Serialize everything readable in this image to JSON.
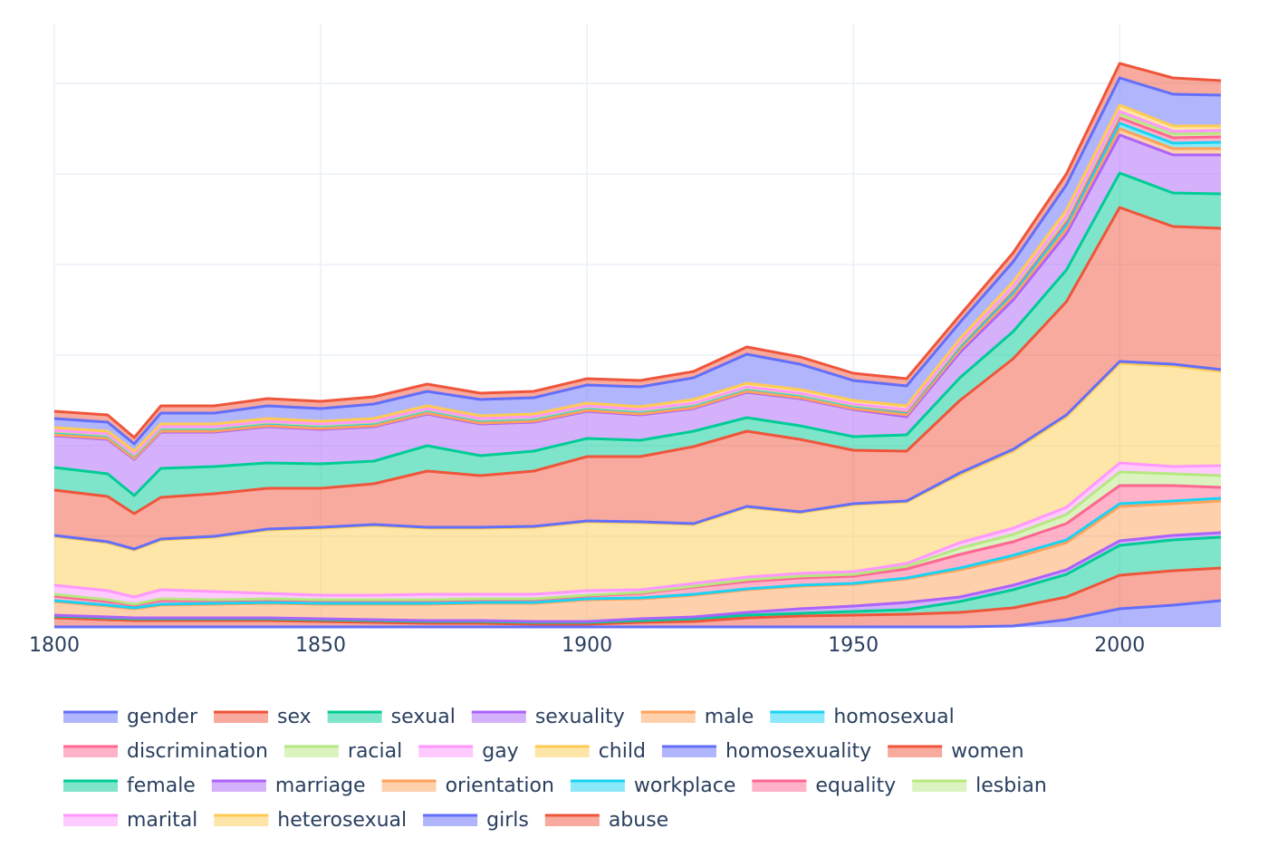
{
  "chart_data": {
    "type": "stacked-area",
    "x": [
      1800,
      1810,
      1815,
      1820,
      1830,
      1840,
      1850,
      1860,
      1870,
      1880,
      1890,
      1900,
      1910,
      1920,
      1930,
      1940,
      1950,
      1960,
      1970,
      1980,
      1990,
      2000,
      2010,
      2019
    ],
    "xlim": [
      1800,
      2019
    ],
    "xticks": [
      1800,
      1850,
      1900,
      1950,
      2000
    ],
    "ylim": [
      0,
      650
    ],
    "yticks": [
      0,
      100,
      200,
      300,
      400,
      500,
      600
    ],
    "grid": true,
    "series": [
      {
        "name": "gender",
        "color": "#636efa",
        "values": [
          0,
          0,
          0,
          0,
          0,
          0,
          0,
          0,
          0,
          0,
          0,
          0,
          0,
          0,
          0,
          0,
          0,
          0,
          0,
          1,
          8,
          20,
          24,
          29
        ]
      },
      {
        "name": "sex",
        "color": "#EF553B",
        "values": [
          10,
          8,
          7,
          7,
          7,
          7,
          6,
          5,
          4,
          4,
          3,
          3,
          5,
          6,
          10,
          12,
          13,
          14,
          16,
          20,
          25,
          37,
          38,
          36
        ]
      },
      {
        "name": "sexual",
        "color": "#00cc96",
        "values": [
          2,
          2,
          2,
          2,
          2,
          2,
          2,
          2,
          2,
          2,
          2,
          2,
          2,
          3,
          3,
          3,
          4,
          5,
          12,
          20,
          25,
          33,
          34,
          34
        ]
      },
      {
        "name": "sexuality",
        "color": "#ab63fa",
        "values": [
          1,
          1,
          1,
          1,
          1,
          1,
          1,
          1,
          1,
          1,
          1,
          1,
          2,
          2,
          3,
          5,
          6,
          8,
          5,
          5,
          5,
          5,
          5,
          5
        ]
      },
      {
        "name": "male",
        "color": "#FFA15A",
        "values": [
          15,
          12,
          10,
          14,
          15,
          16,
          16,
          17,
          18,
          19,
          20,
          24,
          22,
          24,
          25,
          25,
          24,
          26,
          30,
          30,
          30,
          38,
          35,
          35
        ]
      },
      {
        "name": "homosexual",
        "color": "#19d3f3",
        "values": [
          1,
          1,
          1,
          1,
          1,
          1,
          1,
          1,
          1,
          1,
          1,
          1,
          1,
          1,
          1,
          1,
          1,
          1,
          2,
          3,
          3,
          3,
          3,
          3
        ]
      },
      {
        "name": "discrimination",
        "color": "#FF6692",
        "values": [
          5,
          4,
          3,
          4,
          3,
          3,
          3,
          3,
          3,
          3,
          3,
          3,
          5,
          8,
          8,
          8,
          8,
          10,
          15,
          15,
          18,
          20,
          17,
          12
        ]
      },
      {
        "name": "racial",
        "color": "#B6E880",
        "values": [
          2,
          2,
          1,
          2,
          1,
          1,
          1,
          1,
          1,
          1,
          1,
          1,
          1,
          1,
          2,
          2,
          2,
          3,
          7,
          8,
          10,
          15,
          13,
          13
        ]
      },
      {
        "name": "gay",
        "color": "#FF97FF",
        "values": [
          10,
          10,
          8,
          10,
          9,
          6,
          5,
          5,
          6,
          5,
          5,
          5,
          3,
          3,
          3,
          3,
          3,
          3,
          6,
          7,
          8,
          10,
          8,
          11
        ]
      },
      {
        "name": "child",
        "color": "#FECB52",
        "values": [
          54,
          53,
          52,
          55,
          60,
          70,
          74,
          77,
          73,
          73,
          74,
          76,
          74,
          65,
          77,
          67,
          74,
          68,
          75,
          85,
          100,
          110,
          111,
          104
        ]
      },
      {
        "name": "homosexuality",
        "color": "#636efa",
        "values": [
          1,
          1,
          1,
          1,
          1,
          1,
          1,
          1,
          1,
          1,
          1,
          1,
          1,
          1,
          1,
          1,
          1,
          1,
          2,
          2,
          2,
          2,
          2,
          2
        ]
      },
      {
        "name": "women",
        "color": "#EF553B",
        "values": [
          50,
          50,
          39,
          46,
          47,
          45,
          43,
          45,
          62,
          57,
          61,
          71,
          72,
          85,
          83,
          80,
          59,
          55,
          80,
          100,
          125,
          170,
          152,
          156
        ]
      },
      {
        "name": "female",
        "color": "#00cc96",
        "values": [
          25,
          25,
          20,
          32,
          30,
          28,
          27,
          25,
          28,
          22,
          22,
          20,
          18,
          17,
          15,
          15,
          15,
          18,
          25,
          30,
          35,
          38,
          37,
          38
        ]
      },
      {
        "name": "marriage",
        "color": "#ab63fa",
        "values": [
          35,
          38,
          40,
          40,
          38,
          40,
          38,
          38,
          35,
          35,
          32,
          30,
          28,
          25,
          28,
          30,
          30,
          20,
          28,
          35,
          40,
          42,
          42,
          43
        ]
      },
      {
        "name": "orientation",
        "color": "#FFA15A",
        "values": [
          1,
          1,
          1,
          1,
          1,
          1,
          1,
          1,
          1,
          1,
          1,
          1,
          1,
          1,
          1,
          1,
          1,
          2,
          3,
          4,
          5,
          7,
          7,
          7
        ]
      },
      {
        "name": "workplace",
        "color": "#19d3f3",
        "values": [
          3,
          3,
          3,
          3,
          3,
          3,
          3,
          3,
          3,
          3,
          3,
          3,
          3,
          3,
          3,
          3,
          3,
          3,
          3,
          4,
          5,
          6,
          6,
          7
        ]
      },
      {
        "name": "equality",
        "color": "#FF6692",
        "values": [
          1,
          1,
          1,
          1,
          1,
          1,
          1,
          1,
          1,
          1,
          1,
          1,
          1,
          1,
          1,
          1,
          1,
          1,
          2,
          3,
          4,
          6,
          6,
          6
        ]
      },
      {
        "name": "lesbian",
        "color": "#B6E880",
        "values": [
          0,
          0,
          0,
          0,
          0,
          0,
          0,
          0,
          0,
          0,
          0,
          0,
          0,
          0,
          0,
          0,
          0,
          1,
          1,
          2,
          3,
          4,
          4,
          4
        ]
      },
      {
        "name": "marital",
        "color": "#FF97FF",
        "values": [
          1,
          1,
          1,
          1,
          1,
          1,
          1,
          1,
          1,
          1,
          1,
          1,
          1,
          1,
          1,
          1,
          1,
          1,
          2,
          2,
          3,
          3,
          3,
          3
        ]
      },
      {
        "name": "heterosexual",
        "color": "#FECB52",
        "values": [
          3,
          3,
          3,
          3,
          3,
          3,
          3,
          3,
          3,
          3,
          3,
          3,
          3,
          4,
          4,
          4,
          4,
          4,
          4,
          5,
          6,
          7,
          6,
          5
        ]
      },
      {
        "name": "girls",
        "color": "#636efa",
        "values": [
          10,
          10,
          8,
          12,
          12,
          14,
          14,
          16,
          16,
          18,
          18,
          20,
          22,
          24,
          32,
          28,
          22,
          22,
          18,
          22,
          28,
          30,
          35,
          34
        ]
      },
      {
        "name": "abuse",
        "color": "#EF553B",
        "values": [
          8,
          8,
          7,
          8,
          8,
          8,
          8,
          8,
          8,
          7,
          7,
          7,
          7,
          7,
          8,
          8,
          8,
          8,
          8,
          10,
          12,
          16,
          18,
          16
        ]
      }
    ]
  }
}
